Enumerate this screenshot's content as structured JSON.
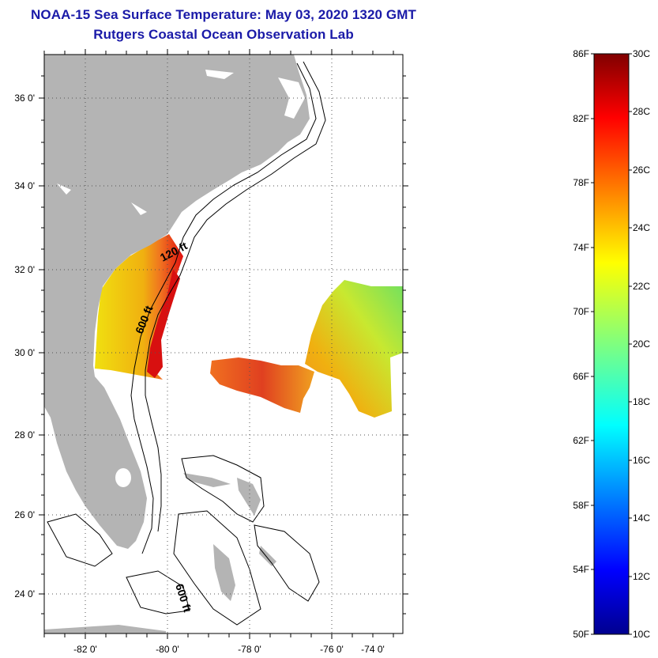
{
  "title": "NOAA-15 Sea Surface Temperature:  May 03, 2020 1320 GMT",
  "subtitle": "Rutgers Coastal Ocean Observation Lab",
  "map": {
    "lon_labels": [
      "-82 0'",
      "-80 0'",
      "-78 0'",
      "-76 0'",
      "-74 0'"
    ],
    "lat_labels": [
      "36 0'",
      "34 0'",
      "32 0'",
      "30 0'",
      "28 0'",
      "26 0'",
      "24 0'"
    ],
    "contour_labels": [
      "120 ft",
      "600 ft",
      "600 ft"
    ],
    "colors": {
      "land": "#b4b4b4",
      "frame": "#000000",
      "grid": "#555555"
    }
  },
  "colorbar": {
    "fahrenheit_labels": [
      "86F",
      "82F",
      "78F",
      "74F",
      "70F",
      "66F",
      "62F",
      "58F",
      "54F",
      "50F"
    ],
    "celsius_labels": [
      "30C",
      "28C",
      "26C",
      "24C",
      "22C",
      "20C",
      "18C",
      "16C",
      "14C",
      "12C",
      "10C"
    ],
    "range_c": [
      10,
      30
    ],
    "colormap": "jet"
  }
}
